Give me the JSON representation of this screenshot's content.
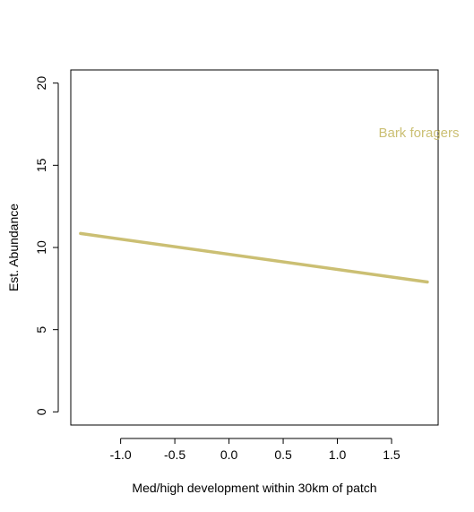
{
  "chart_data": {
    "type": "line",
    "title": "",
    "xlabel": "Med/high development within 30km of patch",
    "ylabel": "Est. Abundance",
    "xlim": [
      -1.46,
      1.93
    ],
    "ylim": [
      -0.8,
      20.8
    ],
    "x_ticks": [
      "-1.0",
      "-0.5",
      "0.0",
      "0.5",
      "1.0",
      "1.5"
    ],
    "y_ticks": [
      "0",
      "5",
      "10",
      "15",
      "20"
    ],
    "grid": false,
    "series": [
      {
        "color": "#cbbf73",
        "x": [
          -1.37,
          1.83
        ],
        "y": [
          10.85,
          7.9
        ]
      }
    ],
    "annotations": [
      {
        "text": "Bark foragers",
        "color": "#cbbf73",
        "x": 1.38,
        "y": 16.7
      }
    ]
  }
}
